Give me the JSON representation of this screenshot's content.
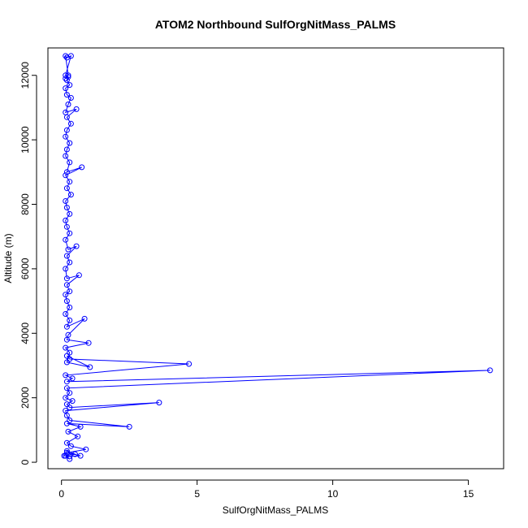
{
  "chart_data": {
    "type": "line",
    "title": "ATOM2 Northbound SulfOrgNitMass_PALMS",
    "xlabel": "SulfOrgNitMass_PALMS",
    "ylabel": "Altitude (m)",
    "xlim": [
      -0.5,
      16.3
    ],
    "ylim": [
      -200,
      12850
    ],
    "x_ticks": [
      0,
      5,
      10,
      15
    ],
    "y_ticks": [
      0,
      2000,
      4000,
      6000,
      8000,
      10000,
      12000
    ],
    "x_tick_labels": [
      "0",
      "5",
      "10",
      "15"
    ],
    "y_tick_labels": [
      "0",
      "2000",
      "4000",
      "6000",
      "8000",
      "10000",
      "12000"
    ],
    "grid": false,
    "legend": "none",
    "series_color": "#0000ff",
    "marker": "open-circle",
    "series": [
      {
        "points": [
          [
            0.3,
            100
          ],
          [
            0.15,
            200
          ],
          [
            0.5,
            250
          ],
          [
            0.2,
            350
          ],
          [
            0.1,
            200
          ],
          [
            0.3,
            180
          ],
          [
            0.7,
            200
          ],
          [
            0.2,
            300
          ],
          [
            0.9,
            400
          ],
          [
            0.35,
            500
          ],
          [
            0.2,
            600
          ],
          [
            0.6,
            800
          ],
          [
            0.25,
            950
          ],
          [
            0.7,
            1100
          ],
          [
            0.2,
            1200
          ],
          [
            2.5,
            1100
          ],
          [
            0.3,
            1300
          ],
          [
            0.2,
            1450
          ],
          [
            0.15,
            1600
          ],
          [
            3.6,
            1850
          ],
          [
            0.3,
            1700
          ],
          [
            0.2,
            1800
          ],
          [
            0.4,
            1900
          ],
          [
            0.15,
            2000
          ],
          [
            0.3,
            2150
          ],
          [
            0.2,
            2300
          ],
          [
            15.8,
            2850
          ],
          [
            0.2,
            2500
          ],
          [
            0.4,
            2600
          ],
          [
            0.15,
            2700
          ],
          [
            4.7,
            3050
          ],
          [
            0.3,
            3200
          ],
          [
            0.2,
            3300
          ],
          [
            1.05,
            2950
          ],
          [
            0.2,
            3100
          ],
          [
            0.3,
            3400
          ],
          [
            0.15,
            3550
          ],
          [
            1.0,
            3700
          ],
          [
            0.2,
            3800
          ],
          [
            0.25,
            3950
          ],
          [
            0.85,
            4450
          ],
          [
            0.2,
            4200
          ],
          [
            0.3,
            4400
          ],
          [
            0.15,
            4600
          ],
          [
            0.3,
            4800
          ],
          [
            0.2,
            5000
          ],
          [
            0.15,
            5200
          ],
          [
            0.3,
            5300
          ],
          [
            0.2,
            5500
          ],
          [
            0.65,
            5800
          ],
          [
            0.2,
            5700
          ],
          [
            0.15,
            6000
          ],
          [
            0.3,
            6200
          ],
          [
            0.2,
            6400
          ],
          [
            0.55,
            6700
          ],
          [
            0.25,
            6600
          ],
          [
            0.15,
            6900
          ],
          [
            0.3,
            7100
          ],
          [
            0.2,
            7300
          ],
          [
            0.15,
            7500
          ],
          [
            0.3,
            7700
          ],
          [
            0.2,
            7900
          ],
          [
            0.15,
            8100
          ],
          [
            0.35,
            8300
          ],
          [
            0.2,
            8500
          ],
          [
            0.3,
            8700
          ],
          [
            0.15,
            8900
          ],
          [
            0.75,
            9150
          ],
          [
            0.2,
            9000
          ],
          [
            0.3,
            9300
          ],
          [
            0.15,
            9500
          ],
          [
            0.2,
            9700
          ],
          [
            0.3,
            9900
          ],
          [
            0.15,
            10100
          ],
          [
            0.2,
            10300
          ],
          [
            0.35,
            10500
          ],
          [
            0.2,
            10700
          ],
          [
            0.55,
            10950
          ],
          [
            0.15,
            10850
          ],
          [
            0.25,
            11100
          ],
          [
            0.35,
            11300
          ],
          [
            0.2,
            11400
          ],
          [
            0.15,
            11600
          ],
          [
            0.3,
            11700
          ],
          [
            0.2,
            11850
          ],
          [
            0.25,
            11950
          ],
          [
            0.15,
            12000
          ],
          [
            0.35,
            12600
          ],
          [
            0.2,
            12550
          ],
          [
            0.15,
            12600
          ],
          [
            0.25,
            12000
          ],
          [
            0.15,
            11900
          ]
        ]
      }
    ]
  }
}
